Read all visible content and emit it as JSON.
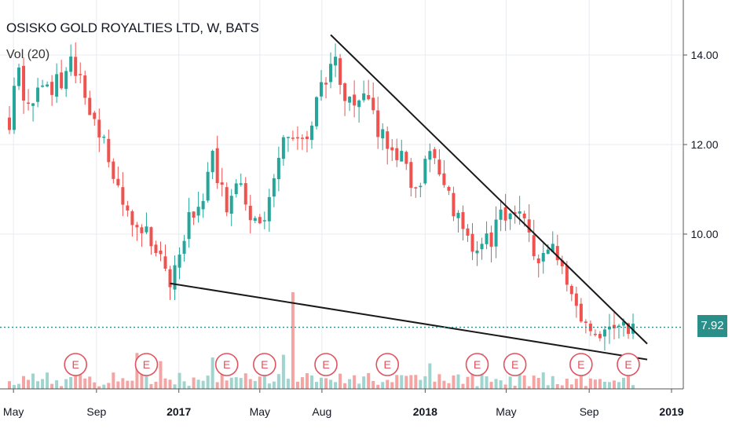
{
  "header": {
    "symbol": "OSISKO GOLD ROYALTIES LTD, W, BATS",
    "volume_label": "Vol (20)"
  },
  "last_price": "7.92",
  "colors": {
    "up": "#26a69a",
    "down": "#ef5350",
    "vol_up": "#9fd4cf",
    "vol_down": "#f4a5a3",
    "trendline": "#1a1a1a",
    "grid": "#e8ebf0",
    "last_price_line": "#2a8f89",
    "earnings": "#e0525d"
  },
  "chart_data": {
    "type": "candlestick",
    "title": "OSISKO GOLD ROYALTIES LTD, W, BATS",
    "series": [
      {
        "name": "price",
        "description": "weekly price path (approximate closes)",
        "points": [
          [
            "2016-04-25",
            12.6
          ],
          [
            "2016-05-09",
            13.5
          ],
          [
            "2016-05-23",
            12.9
          ],
          [
            "2016-06-13",
            13.4
          ],
          [
            "2016-07-04",
            13.3
          ],
          [
            "2016-07-25",
            13.7
          ],
          [
            "2016-08-08",
            13.4
          ],
          [
            "2016-08-22",
            12.9
          ],
          [
            "2016-09-12",
            12.0
          ],
          [
            "2016-10-03",
            11.0
          ],
          [
            "2016-10-24",
            10.3
          ],
          [
            "2016-11-14",
            10.1
          ],
          [
            "2016-12-05",
            9.6
          ],
          [
            "2016-12-19",
            8.9
          ],
          [
            "2017-01-09",
            10.1
          ],
          [
            "2017-01-30",
            10.7
          ],
          [
            "2017-02-20",
            11.6
          ],
          [
            "2017-03-13",
            10.5
          ],
          [
            "2017-04-03",
            11.2
          ],
          [
            "2017-04-24",
            10.2
          ],
          [
            "2017-05-15",
            10.7
          ],
          [
            "2017-06-05",
            12.2
          ],
          [
            "2017-06-26",
            11.9
          ],
          [
            "2017-07-17",
            12.5
          ],
          [
            "2017-08-07",
            13.6
          ],
          [
            "2017-08-21",
            14.2
          ],
          [
            "2017-09-04",
            13.0
          ],
          [
            "2017-09-25",
            13.1
          ],
          [
            "2017-10-16",
            12.6
          ],
          [
            "2017-11-06",
            11.9
          ],
          [
            "2017-11-27",
            11.6
          ],
          [
            "2017-12-18",
            10.9
          ],
          [
            "2018-01-08",
            11.9
          ],
          [
            "2018-01-29",
            11.1
          ],
          [
            "2018-02-19",
            10.4
          ],
          [
            "2018-03-12",
            9.6
          ],
          [
            "2018-04-02",
            9.8
          ],
          [
            "2018-04-23",
            10.3
          ],
          [
            "2018-05-07",
            10.6
          ],
          [
            "2018-05-28",
            10.1
          ],
          [
            "2018-06-18",
            9.6
          ],
          [
            "2018-07-09",
            9.7
          ],
          [
            "2018-07-30",
            9.1
          ],
          [
            "2018-08-20",
            8.1
          ],
          [
            "2018-09-10",
            7.65
          ],
          [
            "2018-10-01",
            8.0
          ],
          [
            "2018-10-22",
            7.8
          ],
          [
            "2018-11-05",
            7.92
          ]
        ]
      },
      {
        "name": "upper_trendline",
        "points": [
          [
            "2017-08-14",
            14.45
          ],
          [
            "2018-11-26",
            7.55
          ]
        ]
      },
      {
        "name": "lower_trendline",
        "points": [
          [
            "2016-12-19",
            8.9
          ],
          [
            "2018-11-26",
            7.2
          ]
        ]
      }
    ],
    "earnings_markers": [
      "2016-08-01",
      "2016-11-14",
      "2017-03-13",
      "2017-05-08",
      "2017-08-07",
      "2017-11-06",
      "2018-03-19",
      "2018-05-14",
      "2018-08-20",
      "2018-10-29"
    ],
    "earnings_label": "E",
    "x_tick_labels": [
      "May",
      "Sep",
      "2017",
      "May",
      "Aug",
      "2018",
      "May",
      "Sep",
      "2019"
    ],
    "y_tick_labels": [
      "14.00",
      "12.00",
      "10.00"
    ],
    "ylim": [
      7.0,
      15.0
    ],
    "grid": true
  }
}
